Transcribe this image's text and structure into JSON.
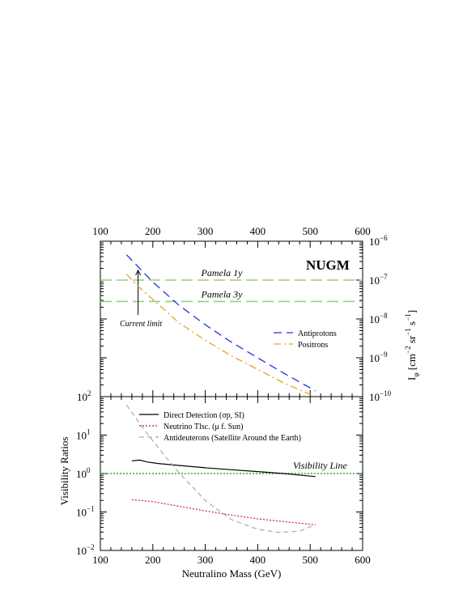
{
  "chart_data": [
    {
      "type": "line",
      "panel": "top",
      "title": "NUGM",
      "xlabel": "",
      "ylabel": "I",
      "ylabel_sub": "φ",
      "ylabel_units": "[cm",
      "ylabel_units_rest": "sr",
      "ylabel_units_end": "s",
      "ylabel_exp_a": "−2",
      "ylabel_exp_b": "−1",
      "ylabel_exp_c": "−1",
      "ylabel_close": "]",
      "xlim": [
        100,
        600
      ],
      "ylim_log10": [
        -10,
        -6
      ],
      "yscale": "log",
      "y_axis_side": "right",
      "x_axis_side": "top",
      "x_ticks": [
        "100",
        "200",
        "300",
        "400",
        "500",
        "600"
      ],
      "y_tick_base": "10",
      "y_tick_exponents": [
        "−10",
        "−9",
        "−8",
        "−7",
        "−6"
      ],
      "left_corner_label_base": "10",
      "left_corner_label_exp": "2",
      "legend": "middle-right",
      "series": [
        {
          "name": "Antiprotons",
          "color": "#2233dd",
          "dash": "10,6",
          "x": [
            150,
            175,
            200,
            250,
            300,
            350,
            400,
            450,
            510
          ],
          "y_log10": [
            -6.35,
            -6.7,
            -7.05,
            -7.65,
            -8.15,
            -8.6,
            -9.0,
            -9.4,
            -9.85
          ]
        },
        {
          "name": "Positrons",
          "color": "#e8a12a",
          "dash": "9,4,2,4",
          "x": [
            150,
            175,
            200,
            250,
            300,
            350,
            400,
            450,
            510
          ],
          "y_log10": [
            -6.85,
            -7.2,
            -7.5,
            -8.1,
            -8.55,
            -8.95,
            -9.3,
            -9.65,
            -10.0
          ]
        }
      ],
      "hlines": [
        {
          "label": "Pamela 1y",
          "y_log10": -7.0,
          "color": "#99cc88"
        },
        {
          "label": "Pamela 3y",
          "y_log10": -7.55,
          "color": "#99cc88"
        }
      ],
      "annotation": {
        "label": "Current limit",
        "x": 175,
        "y_log10_from": -7.9,
        "y_log10_to": -6.75
      }
    },
    {
      "type": "line",
      "panel": "bottom",
      "xlabel": "Neutralino Mass (GeV)",
      "ylabel": "Visibility Ratios",
      "xlim": [
        100,
        600
      ],
      "ylim_log10": [
        -2,
        2
      ],
      "yscale": "log",
      "x_ticks": [
        "100",
        "200",
        "300",
        "400",
        "500",
        "600"
      ],
      "y_tick_base": "10",
      "y_tick_exponents": [
        "−2",
        "−1",
        "0",
        "1"
      ],
      "legend": "top-right",
      "series": [
        {
          "name": "Direct Detection (σp, SI)",
          "color": "#000000",
          "dash": "",
          "x": [
            160,
            175,
            190,
            210,
            250,
            300,
            350,
            400,
            450,
            510
          ],
          "y_log10": [
            0.33,
            0.35,
            0.3,
            0.26,
            0.21,
            0.15,
            0.1,
            0.05,
            0.0,
            -0.08
          ]
        },
        {
          "name": "Neutrino Tlsc. (μ f. Sun)",
          "color": "#cc2222",
          "dash": "2,2",
          "x": [
            160,
            200,
            250,
            300,
            350,
            400,
            450,
            510
          ],
          "y_log10": [
            -0.68,
            -0.73,
            -0.85,
            -0.97,
            -1.08,
            -1.18,
            -1.25,
            -1.33
          ]
        },
        {
          "name": "Antideuterons (Satellite Around the Earth)",
          "color": "#aaaaaa",
          "dash": "6,4",
          "x": [
            150,
            175,
            200,
            225,
            250,
            300,
            350,
            400,
            440,
            480,
            510
          ],
          "y_log10": [
            1.78,
            1.3,
            0.85,
            0.42,
            0.02,
            -0.7,
            -1.2,
            -1.45,
            -1.53,
            -1.5,
            -1.33
          ]
        }
      ],
      "hlines": [
        {
          "label": "Visibility Line",
          "y_log10": 0.0,
          "color": "#33aa33"
        }
      ]
    }
  ]
}
